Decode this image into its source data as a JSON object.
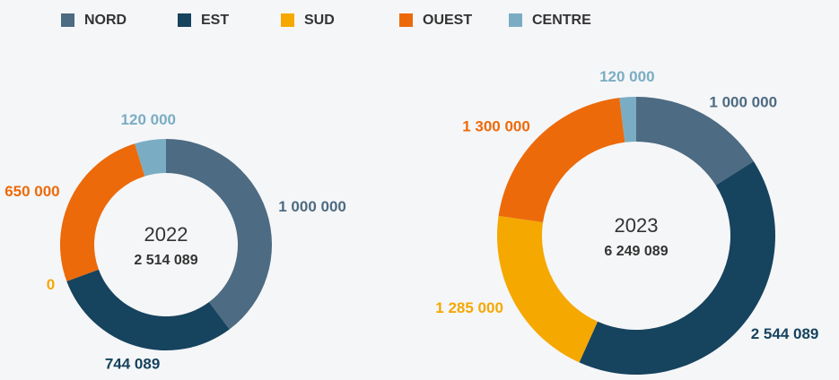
{
  "legend": {
    "categories": [
      "NORD",
      "EST",
      "SUD",
      "OUEST",
      "CENTRE"
    ],
    "colors": [
      "#4d6b82",
      "#16435e",
      "#f5a800",
      "#ec6a0a",
      "#7aadc4"
    ]
  },
  "chart_data": [
    {
      "type": "donut",
      "title": "2022",
      "subtitle": "2 514 089",
      "values": [
        1000000,
        744089,
        0,
        650000,
        120000
      ],
      "value_labels": [
        "1 000 000",
        "744 089",
        "0",
        "650 000",
        "120 000"
      ]
    },
    {
      "type": "donut",
      "title": "2023",
      "subtitle": "6 249 089",
      "values": [
        1000000,
        2544089,
        1285000,
        1300000,
        120000
      ],
      "value_labels": [
        "1 000 000",
        "2 544 089",
        "1 285 000",
        "1 300 000",
        "120 000"
      ]
    }
  ]
}
